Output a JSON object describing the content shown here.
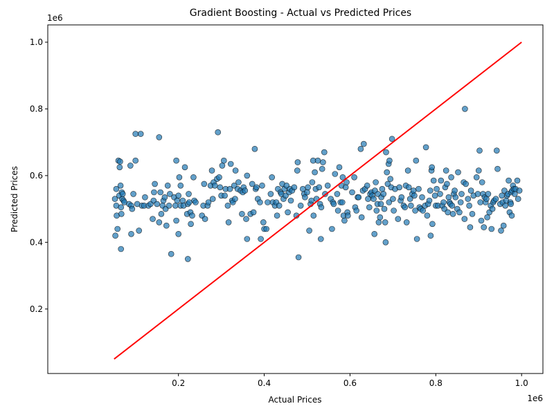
{
  "chart_data": {
    "type": "scatter",
    "title": "Gradient Boosting - Actual vs Predicted Prices",
    "xlabel": "Actual Prices",
    "ylabel": "Predicted Prices",
    "x_offset_label": "1e6",
    "y_offset_label": "1e6",
    "xlim": [
      0.0,
      1.0
    ],
    "ylim": [
      0.0,
      1.0
    ],
    "x_ticks": [
      "0.2",
      "0.4",
      "0.6",
      "0.8",
      "1.0"
    ],
    "x_tick_values": [
      0.2,
      0.4,
      0.6,
      0.8,
      1.0
    ],
    "y_ticks": [
      "0.2",
      "0.4",
      "0.6",
      "0.8",
      "1.0"
    ],
    "y_tick_values": [
      0.2,
      0.4,
      0.6,
      0.8,
      1.0
    ],
    "grid": false,
    "point_color": "#1f77b4",
    "point_edge_color": "#000000",
    "reference_line": {
      "x": [
        0.05,
        1.0
      ],
      "y": [
        0.05,
        1.0
      ],
      "color": "#ff0000"
    },
    "points": [
      [
        0.052,
        0.53
      ],
      [
        0.053,
        0.42
      ],
      [
        0.055,
        0.56
      ],
      [
        0.055,
        0.51
      ],
      [
        0.056,
        0.48
      ],
      [
        0.058,
        0.44
      ],
      [
        0.06,
        0.645
      ],
      [
        0.062,
        0.54
      ],
      [
        0.063,
        0.625
      ],
      [
        0.064,
        0.642
      ],
      [
        0.065,
        0.57
      ],
      [
        0.066,
        0.505
      ],
      [
        0.066,
        0.38
      ],
      [
        0.067,
        0.485
      ],
      [
        0.068,
        0.55
      ],
      [
        0.069,
        0.53
      ],
      [
        0.07,
        0.545
      ],
      [
        0.072,
        0.525
      ],
      [
        0.074,
        0.52
      ],
      [
        0.085,
        0.515
      ],
      [
        0.088,
        0.63
      ],
      [
        0.09,
        0.425
      ],
      [
        0.09,
        0.51
      ],
      [
        0.092,
        0.5
      ],
      [
        0.095,
        0.545
      ],
      [
        0.1,
        0.725
      ],
      [
        0.1,
        0.645
      ],
      [
        0.104,
        0.515
      ],
      [
        0.108,
        0.435
      ],
      [
        0.112,
        0.725
      ],
      [
        0.115,
        0.51
      ],
      [
        0.12,
        0.51
      ],
      [
        0.122,
        0.535
      ],
      [
        0.13,
        0.51
      ],
      [
        0.135,
        0.515
      ],
      [
        0.14,
        0.47
      ],
      [
        0.142,
        0.525
      ],
      [
        0.143,
        0.55
      ],
      [
        0.145,
        0.575
      ],
      [
        0.15,
        0.515
      ],
      [
        0.155,
        0.46
      ],
      [
        0.155,
        0.715
      ],
      [
        0.158,
        0.55
      ],
      [
        0.16,
        0.485
      ],
      [
        0.163,
        0.51
      ],
      [
        0.165,
        0.525
      ],
      [
        0.168,
        0.535
      ],
      [
        0.17,
        0.5
      ],
      [
        0.172,
        0.45
      ],
      [
        0.175,
        0.57
      ],
      [
        0.178,
        0.51
      ],
      [
        0.18,
        0.545
      ],
      [
        0.183,
        0.365
      ],
      [
        0.19,
        0.535
      ],
      [
        0.193,
        0.51
      ],
      [
        0.195,
        0.645
      ],
      [
        0.195,
        0.465
      ],
      [
        0.197,
        0.525
      ],
      [
        0.2,
        0.425
      ],
      [
        0.2,
        0.54
      ],
      [
        0.202,
        0.595
      ],
      [
        0.205,
        0.57
      ],
      [
        0.205,
        0.51
      ],
      [
        0.21,
        0.525
      ],
      [
        0.212,
        0.51
      ],
      [
        0.215,
        0.625
      ],
      [
        0.22,
        0.485
      ],
      [
        0.222,
        0.515
      ],
      [
        0.222,
        0.35
      ],
      [
        0.224,
        0.545
      ],
      [
        0.225,
        0.52
      ],
      [
        0.228,
        0.49
      ],
      [
        0.229,
        0.455
      ],
      [
        0.232,
        0.48
      ],
      [
        0.235,
        0.595
      ],
      [
        0.237,
        0.525
      ],
      [
        0.24,
        0.52
      ],
      [
        0.255,
        0.48
      ],
      [
        0.258,
        0.51
      ],
      [
        0.26,
        0.575
      ],
      [
        0.262,
        0.47
      ],
      [
        0.268,
        0.51
      ],
      [
        0.27,
        0.52
      ],
      [
        0.275,
        0.57
      ],
      [
        0.278,
        0.615
      ],
      [
        0.28,
        0.53
      ],
      [
        0.282,
        0.58
      ],
      [
        0.285,
        0.57
      ],
      [
        0.29,
        0.59
      ],
      [
        0.292,
        0.73
      ],
      [
        0.295,
        0.595
      ],
      [
        0.297,
        0.565
      ],
      [
        0.3,
        0.54
      ],
      [
        0.302,
        0.63
      ],
      [
        0.306,
        0.645
      ],
      [
        0.308,
        0.54
      ],
      [
        0.31,
        0.56
      ],
      [
        0.315,
        0.51
      ],
      [
        0.317,
        0.46
      ],
      [
        0.32,
        0.56
      ],
      [
        0.322,
        0.635
      ],
      [
        0.325,
        0.525
      ],
      [
        0.327,
        0.52
      ],
      [
        0.33,
        0.57
      ],
      [
        0.332,
        0.53
      ],
      [
        0.333,
        0.615
      ],
      [
        0.338,
        0.56
      ],
      [
        0.34,
        0.58
      ],
      [
        0.345,
        0.555
      ],
      [
        0.348,
        0.485
      ],
      [
        0.35,
        0.55
      ],
      [
        0.352,
        0.565
      ],
      [
        0.355,
        0.555
      ],
      [
        0.358,
        0.47
      ],
      [
        0.36,
        0.41
      ],
      [
        0.36,
        0.6
      ],
      [
        0.368,
        0.485
      ],
      [
        0.372,
        0.575
      ],
      [
        0.375,
        0.49
      ],
      [
        0.378,
        0.68
      ],
      [
        0.38,
        0.56
      ],
      [
        0.382,
        0.565
      ],
      [
        0.385,
        0.53
      ],
      [
        0.39,
        0.52
      ],
      [
        0.392,
        0.41
      ],
      [
        0.395,
        0.57
      ],
      [
        0.398,
        0.46
      ],
      [
        0.4,
        0.44
      ],
      [
        0.405,
        0.44
      ],
      [
        0.408,
        0.52
      ],
      [
        0.415,
        0.545
      ],
      [
        0.418,
        0.595
      ],
      [
        0.42,
        0.52
      ],
      [
        0.425,
        0.51
      ],
      [
        0.428,
        0.52
      ],
      [
        0.43,
        0.48
      ],
      [
        0.432,
        0.56
      ],
      [
        0.435,
        0.51
      ],
      [
        0.438,
        0.55
      ],
      [
        0.44,
        0.545
      ],
      [
        0.442,
        0.575
      ],
      [
        0.445,
        0.53
      ],
      [
        0.447,
        0.56
      ],
      [
        0.45,
        0.54
      ],
      [
        0.452,
        0.57
      ],
      [
        0.455,
        0.49
      ],
      [
        0.458,
        0.55
      ],
      [
        0.46,
        0.56
      ],
      [
        0.462,
        0.525
      ],
      [
        0.465,
        0.555
      ],
      [
        0.47,
        0.565
      ],
      [
        0.475,
        0.48
      ],
      [
        0.477,
        0.615
      ],
      [
        0.478,
        0.64
      ],
      [
        0.48,
        0.355
      ],
      [
        0.485,
        0.51
      ],
      [
        0.49,
        0.56
      ],
      [
        0.493,
        0.545
      ],
      [
        0.495,
        0.535
      ],
      [
        0.5,
        0.55
      ],
      [
        0.502,
        0.565
      ],
      [
        0.505,
        0.435
      ],
      [
        0.508,
        0.515
      ],
      [
        0.51,
        0.525
      ],
      [
        0.512,
        0.58
      ],
      [
        0.514,
        0.645
      ],
      [
        0.515,
        0.48
      ],
      [
        0.518,
        0.61
      ],
      [
        0.52,
        0.56
      ],
      [
        0.522,
        0.53
      ],
      [
        0.525,
        0.645
      ],
      [
        0.528,
        0.565
      ],
      [
        0.53,
        0.515
      ],
      [
        0.532,
        0.41
      ],
      [
        0.533,
        0.505
      ],
      [
        0.535,
        0.62
      ],
      [
        0.537,
        0.64
      ],
      [
        0.54,
        0.67
      ],
      [
        0.542,
        0.545
      ],
      [
        0.548,
        0.57
      ],
      [
        0.555,
        0.53
      ],
      [
        0.558,
        0.44
      ],
      [
        0.56,
        0.52
      ],
      [
        0.562,
        0.515
      ],
      [
        0.565,
        0.605
      ],
      [
        0.57,
        0.545
      ],
      [
        0.572,
        0.495
      ],
      [
        0.575,
        0.625
      ],
      [
        0.578,
        0.52
      ],
      [
        0.58,
        0.57
      ],
      [
        0.582,
        0.52
      ],
      [
        0.583,
        0.595
      ],
      [
        0.585,
        0.48
      ],
      [
        0.587,
        0.465
      ],
      [
        0.59,
        0.565
      ],
      [
        0.592,
        0.58
      ],
      [
        0.594,
        0.49
      ],
      [
        0.595,
        0.48
      ],
      [
        0.605,
        0.55
      ],
      [
        0.61,
        0.595
      ],
      [
        0.612,
        0.505
      ],
      [
        0.615,
        0.495
      ],
      [
        0.618,
        0.535
      ],
      [
        0.62,
        0.535
      ],
      [
        0.625,
        0.68
      ],
      [
        0.627,
        0.475
      ],
      [
        0.63,
        0.555
      ],
      [
        0.632,
        0.695
      ],
      [
        0.635,
        0.56
      ],
      [
        0.64,
        0.57
      ],
      [
        0.642,
        0.53
      ],
      [
        0.645,
        0.505
      ],
      [
        0.647,
        0.545
      ],
      [
        0.65,
        0.55
      ],
      [
        0.652,
        0.54
      ],
      [
        0.655,
        0.53
      ],
      [
        0.657,
        0.425
      ],
      [
        0.658,
        0.555
      ],
      [
        0.66,
        0.58
      ],
      [
        0.662,
        0.495
      ],
      [
        0.664,
        0.515
      ],
      [
        0.665,
        0.545
      ],
      [
        0.667,
        0.46
      ],
      [
        0.67,
        0.475
      ],
      [
        0.672,
        0.515
      ],
      [
        0.673,
        0.535
      ],
      [
        0.675,
        0.56
      ],
      [
        0.678,
        0.545
      ],
      [
        0.68,
        0.5
      ],
      [
        0.682,
        0.46
      ],
      [
        0.683,
        0.4
      ],
      [
        0.684,
        0.67
      ],
      [
        0.686,
        0.61
      ],
      [
        0.688,
        0.575
      ],
      [
        0.69,
        0.635
      ],
      [
        0.691,
        0.52
      ],
      [
        0.692,
        0.645
      ],
      [
        0.694,
        0.59
      ],
      [
        0.696,
        0.565
      ],
      [
        0.698,
        0.71
      ],
      [
        0.7,
        0.53
      ],
      [
        0.702,
        0.495
      ],
      [
        0.705,
        0.56
      ],
      [
        0.712,
        0.47
      ],
      [
        0.715,
        0.565
      ],
      [
        0.718,
        0.525
      ],
      [
        0.72,
        0.535
      ],
      [
        0.725,
        0.51
      ],
      [
        0.728,
        0.505
      ],
      [
        0.73,
        0.57
      ],
      [
        0.732,
        0.46
      ],
      [
        0.735,
        0.615
      ],
      [
        0.737,
        0.565
      ],
      [
        0.74,
        0.53
      ],
      [
        0.742,
        0.51
      ],
      [
        0.745,
        0.545
      ],
      [
        0.748,
        0.555
      ],
      [
        0.75,
        0.54
      ],
      [
        0.752,
        0.495
      ],
      [
        0.754,
        0.645
      ],
      [
        0.756,
        0.41
      ],
      [
        0.76,
        0.56
      ],
      [
        0.762,
        0.505
      ],
      [
        0.765,
        0.5
      ],
      [
        0.768,
        0.535
      ],
      [
        0.77,
        0.495
      ],
      [
        0.775,
        0.51
      ],
      [
        0.777,
        0.685
      ],
      [
        0.78,
        0.48
      ],
      [
        0.782,
        0.515
      ],
      [
        0.785,
        0.525
      ],
      [
        0.787,
        0.555
      ],
      [
        0.788,
        0.42
      ],
      [
        0.79,
        0.615
      ],
      [
        0.791,
        0.625
      ],
      [
        0.792,
        0.455
      ],
      [
        0.795,
        0.585
      ],
      [
        0.798,
        0.54
      ],
      [
        0.8,
        0.51
      ],
      [
        0.802,
        0.56
      ],
      [
        0.805,
        0.51
      ],
      [
        0.81,
        0.545
      ],
      [
        0.812,
        0.585
      ],
      [
        0.815,
        0.51
      ],
      [
        0.818,
        0.52
      ],
      [
        0.82,
        0.5
      ],
      [
        0.822,
        0.565
      ],
      [
        0.824,
        0.615
      ],
      [
        0.826,
        0.575
      ],
      [
        0.828,
        0.49
      ],
      [
        0.83,
        0.535
      ],
      [
        0.832,
        0.52
      ],
      [
        0.834,
        0.515
      ],
      [
        0.836,
        0.595
      ],
      [
        0.838,
        0.51
      ],
      [
        0.84,
        0.485
      ],
      [
        0.842,
        0.545
      ],
      [
        0.844,
        0.555
      ],
      [
        0.846,
        0.535
      ],
      [
        0.85,
        0.5
      ],
      [
        0.852,
        0.61
      ],
      [
        0.855,
        0.49
      ],
      [
        0.858,
        0.52
      ],
      [
        0.86,
        0.545
      ],
      [
        0.865,
        0.58
      ],
      [
        0.867,
        0.47
      ],
      [
        0.868,
        0.8
      ],
      [
        0.87,
        0.575
      ],
      [
        0.875,
        0.53
      ],
      [
        0.878,
        0.51
      ],
      [
        0.88,
        0.445
      ],
      [
        0.882,
        0.555
      ],
      [
        0.885,
        0.485
      ],
      [
        0.888,
        0.54
      ],
      [
        0.895,
        0.595
      ],
      [
        0.898,
        0.545
      ],
      [
        0.9,
        0.615
      ],
      [
        0.902,
        0.675
      ],
      [
        0.904,
        0.52
      ],
      [
        0.906,
        0.465
      ],
      [
        0.908,
        0.58
      ],
      [
        0.91,
        0.545
      ],
      [
        0.912,
        0.445
      ],
      [
        0.914,
        0.535
      ],
      [
        0.916,
        0.52
      ],
      [
        0.918,
        0.53
      ],
      [
        0.92,
        0.475
      ],
      [
        0.922,
        0.545
      ],
      [
        0.925,
        0.49
      ],
      [
        0.928,
        0.51
      ],
      [
        0.93,
        0.44
      ],
      [
        0.932,
        0.5
      ],
      [
        0.934,
        0.52
      ],
      [
        0.936,
        0.525
      ],
      [
        0.94,
        0.53
      ],
      [
        0.942,
        0.675
      ],
      [
        0.944,
        0.62
      ],
      [
        0.95,
        0.515
      ],
      [
        0.952,
        0.435
      ],
      [
        0.954,
        0.54
      ],
      [
        0.956,
        0.52
      ],
      [
        0.958,
        0.45
      ],
      [
        0.96,
        0.555
      ],
      [
        0.962,
        0.51
      ],
      [
        0.964,
        0.525
      ],
      [
        0.966,
        0.54
      ],
      [
        0.968,
        0.545
      ],
      [
        0.97,
        0.585
      ],
      [
        0.972,
        0.49
      ],
      [
        0.974,
        0.52
      ],
      [
        0.975,
        0.515
      ],
      [
        0.976,
        0.55
      ],
      [
        0.977,
        0.48
      ],
      [
        0.978,
        0.555
      ],
      [
        0.98,
        0.57
      ],
      [
        0.982,
        0.56
      ],
      [
        0.984,
        0.545
      ],
      [
        0.986,
        0.56
      ],
      [
        0.99,
        0.585
      ],
      [
        0.992,
        0.53
      ],
      [
        0.995,
        0.555
      ]
    ]
  }
}
